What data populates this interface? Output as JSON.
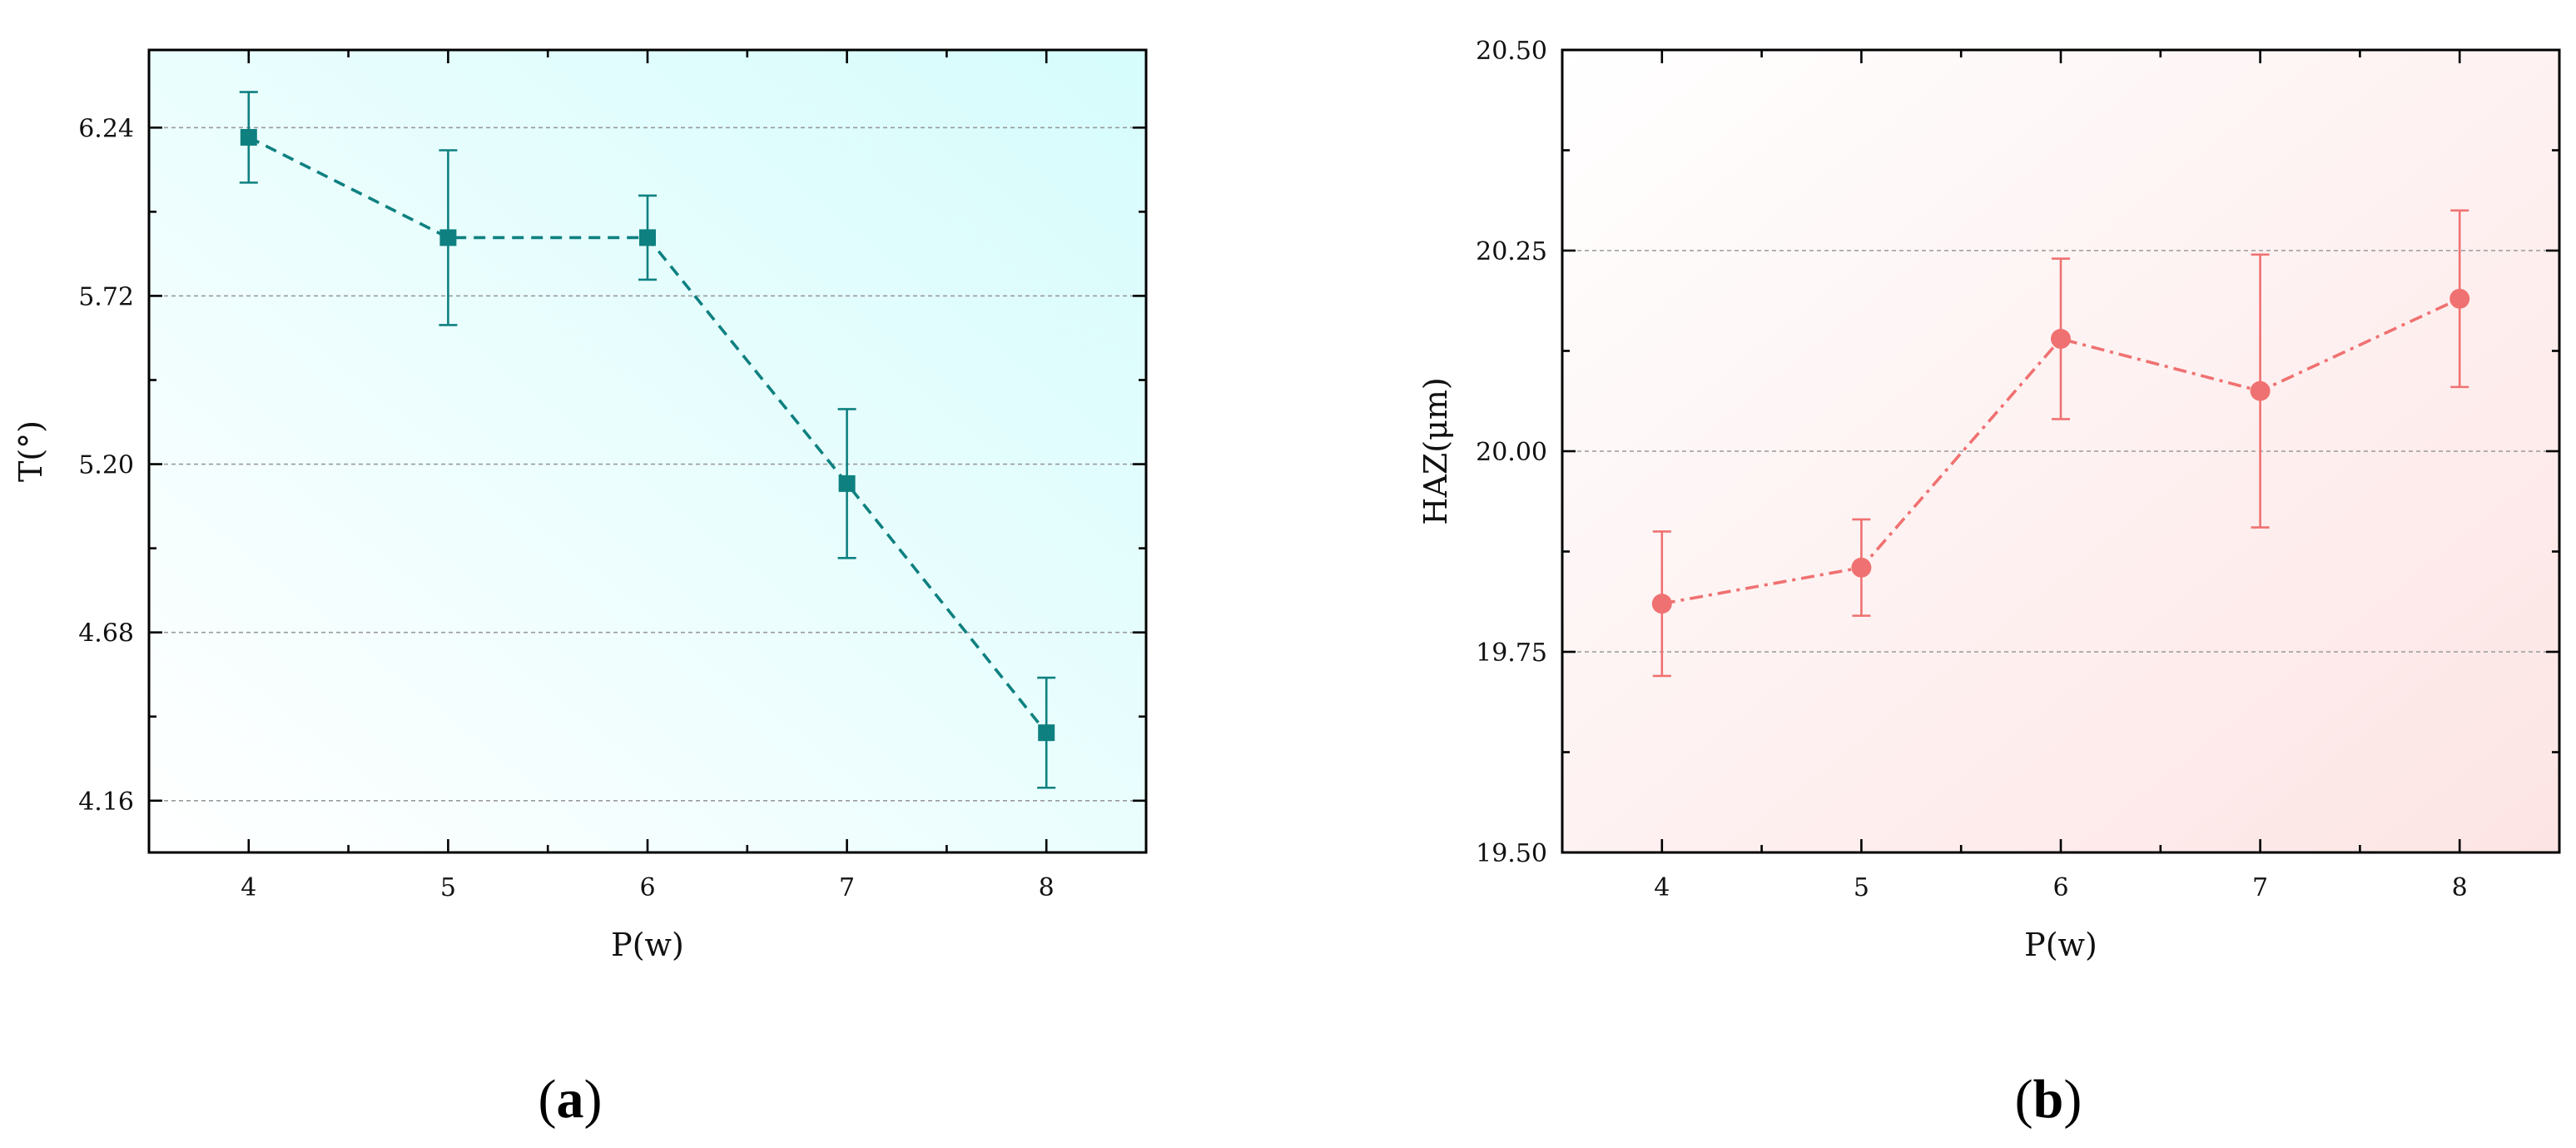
{
  "chart_data": [
    {
      "type": "line",
      "panel_label": {
        "open": "(",
        "letter": "a",
        "close": ")"
      },
      "title": "",
      "xlabel": "P(w)",
      "ylabel": "T(°)",
      "xlim": [
        3.5,
        8.5
      ],
      "ylim": [
        4.0,
        6.48
      ],
      "xticks": [
        4,
        5,
        6,
        7,
        8
      ],
      "yticks": [
        4.16,
        4.68,
        5.2,
        5.72,
        6.24
      ],
      "ytick_labels": [
        "4.16",
        "4.68",
        "5.20",
        "5.72",
        "6.24"
      ],
      "grid": "horizontal-dashed",
      "colors": {
        "line": "#0e8080",
        "background_start": "#ffffff",
        "background_end": "#d6fcfc"
      },
      "marker": "square",
      "line_style": "dashed",
      "series": [
        {
          "x": [
            4,
            5,
            6,
            7,
            8
          ],
          "y": [
            6.21,
            5.9,
            5.9,
            5.14,
            4.37
          ],
          "err": [
            0.14,
            0.27,
            0.13,
            0.23,
            0.17
          ]
        }
      ]
    },
    {
      "type": "line",
      "panel_label": {
        "open": "(",
        "letter": "b",
        "close": ")"
      },
      "title": "",
      "xlabel": "P(w)",
      "ylabel": "HAZ(μm)",
      "xlim": [
        3.5,
        8.5
      ],
      "ylim": [
        19.5,
        20.5
      ],
      "xticks": [
        4,
        5,
        6,
        7,
        8
      ],
      "yticks": [
        19.5,
        19.75,
        20.0,
        20.25,
        20.5
      ],
      "ytick_labels": [
        "19.50",
        "19.75",
        "20.00",
        "20.25",
        "20.50"
      ],
      "grid": "horizontal-dashed",
      "colors": {
        "line": "#f07171",
        "background_start": "#ffffff",
        "background_end": "#fde4e4"
      },
      "marker": "circle",
      "line_style": "dash-dot",
      "series": [
        {
          "x": [
            4,
            5,
            6,
            7,
            8
          ],
          "y": [
            19.81,
            19.855,
            20.14,
            20.075,
            20.19
          ],
          "err": [
            0.09,
            0.06,
            0.1,
            0.17,
            0.11
          ]
        }
      ]
    }
  ]
}
